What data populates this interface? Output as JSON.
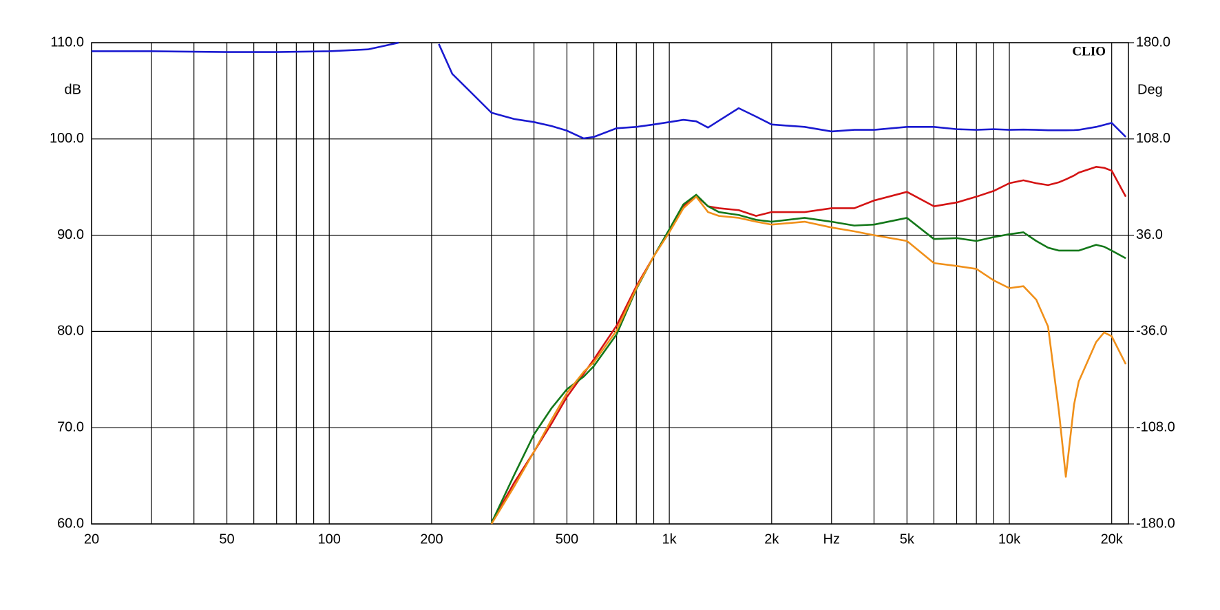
{
  "chart_data": {
    "type": "line",
    "x_scale": "log",
    "brand": "CLIO",
    "ylabel": "dB",
    "y2label": "Deg",
    "xlim": [
      20,
      22400
    ],
    "xticks": [
      20,
      50,
      100,
      200,
      500,
      {
        "value": 1000,
        "label": "1k"
      },
      {
        "value": 2000,
        "label": "2k"
      },
      {
        "value": 3000,
        "label": "Hz"
      },
      {
        "value": 5000,
        "label": "5k"
      },
      {
        "value": 10000,
        "label": "10k"
      },
      {
        "value": 20000,
        "label": "20k"
      }
    ],
    "xgrid": [
      20,
      30,
      40,
      50,
      60,
      70,
      80,
      90,
      100,
      200,
      300,
      400,
      500,
      600,
      700,
      800,
      900,
      1000,
      2000,
      3000,
      4000,
      5000,
      6000,
      7000,
      8000,
      9000,
      10000,
      20000
    ],
    "ylim": [
      60,
      110
    ],
    "yticks": [
      {
        "value": 60,
        "label": "60.0"
      },
      {
        "value": 70,
        "label": "70.0"
      },
      {
        "value": 80,
        "label": "80.0"
      },
      {
        "value": 90,
        "label": "90.0"
      },
      {
        "value": 100,
        "label": "100.0"
      },
      {
        "value": 110,
        "label": "110.0"
      }
    ],
    "y2lim": [
      -180,
      180
    ],
    "y2ticks": [
      {
        "value": -180,
        "label": "-180.0"
      },
      {
        "value": -108,
        "label": "-108.0"
      },
      {
        "value": -36,
        "label": "-36.0"
      },
      {
        "value": 36,
        "label": "36.0"
      },
      {
        "value": 108,
        "label": "108.0"
      },
      {
        "value": 180,
        "label": "180.0"
      }
    ],
    "x": [
      20,
      30,
      50,
      70,
      100,
      130,
      160,
      185,
      210,
      230,
      260,
      300,
      350,
      400,
      450,
      500,
      560,
      600,
      700,
      800,
      900,
      1000,
      1100,
      1200,
      1300,
      1400,
      1600,
      1800,
      2000,
      2500,
      3000,
      3500,
      4000,
      5000,
      6000,
      7000,
      8000,
      9000,
      10000,
      11000,
      12000,
      13000,
      14000,
      14660,
      15500,
      16000,
      18000,
      19000,
      20000,
      22000
    ],
    "series": [
      {
        "color": "#1a1ad0",
        "axis": "y2",
        "values": [
          173.6,
          173.6,
          173,
          173,
          173.6,
          175,
          180,
          null,
          179,
          156.7,
          143.3,
          127.6,
          122.9,
          120.6,
          117.7,
          114.2,
          108.4,
          109.5,
          116,
          117,
          118.8,
          120.6,
          122.3,
          121.2,
          116.5,
          121.7,
          131,
          124.7,
          118.8,
          117,
          113.6,
          114.8,
          114.8,
          117,
          117,
          115.3,
          114.8,
          115.3,
          114.8,
          115,
          114.8,
          114.5,
          114.5,
          114.5,
          114.6,
          114.8,
          117,
          118.5,
          120,
          109.5
        ]
      },
      {
        "color": "#d41414",
        "values": [
          null,
          null,
          null,
          null,
          null,
          null,
          null,
          null,
          null,
          null,
          null,
          60.1,
          64.3,
          67.5,
          70.4,
          73.2,
          75.6,
          77.1,
          80.6,
          84.7,
          87.8,
          90.5,
          93,
          94.1,
          93,
          92.8,
          92.6,
          92,
          92.4,
          92.4,
          92.8,
          92.8,
          93.6,
          94.5,
          93,
          93.4,
          94,
          94.6,
          95.4,
          95.7,
          95.4,
          95.2,
          95.5,
          95.8,
          96.2,
          96.5,
          97.1,
          97,
          96.7,
          94
        ]
      },
      {
        "color": "#14781a",
        "values": [
          null,
          null,
          null,
          null,
          null,
          null,
          null,
          null,
          null,
          null,
          null,
          60.1,
          65.1,
          69.3,
          72,
          74,
          75.3,
          76.4,
          79.7,
          84.4,
          87.8,
          90.6,
          93.2,
          94.2,
          93,
          92.4,
          92.1,
          91.6,
          91.4,
          91.8,
          91.4,
          91,
          91.1,
          91.8,
          89.6,
          89.7,
          89.4,
          89.8,
          90.1,
          90.3,
          89.4,
          88.7,
          88.4,
          88.4,
          88.4,
          88.4,
          89,
          88.8,
          88.4,
          87.6
        ]
      },
      {
        "color": "#f0901a",
        "values": [
          null,
          null,
          null,
          null,
          null,
          null,
          null,
          null,
          null,
          null,
          null,
          60,
          63.9,
          67.5,
          70.8,
          73.6,
          75.8,
          76.8,
          80.1,
          84.5,
          87.8,
          90.3,
          92.8,
          94,
          92.4,
          92,
          91.8,
          91.4,
          91.1,
          91.4,
          90.8,
          90.4,
          90,
          89.4,
          87.1,
          86.8,
          86.5,
          85.3,
          84.5,
          84.7,
          83.3,
          80.5,
          71.6,
          64.9,
          72.4,
          74.8,
          78.9,
          79.9,
          79.5,
          76.6
        ]
      }
    ]
  }
}
